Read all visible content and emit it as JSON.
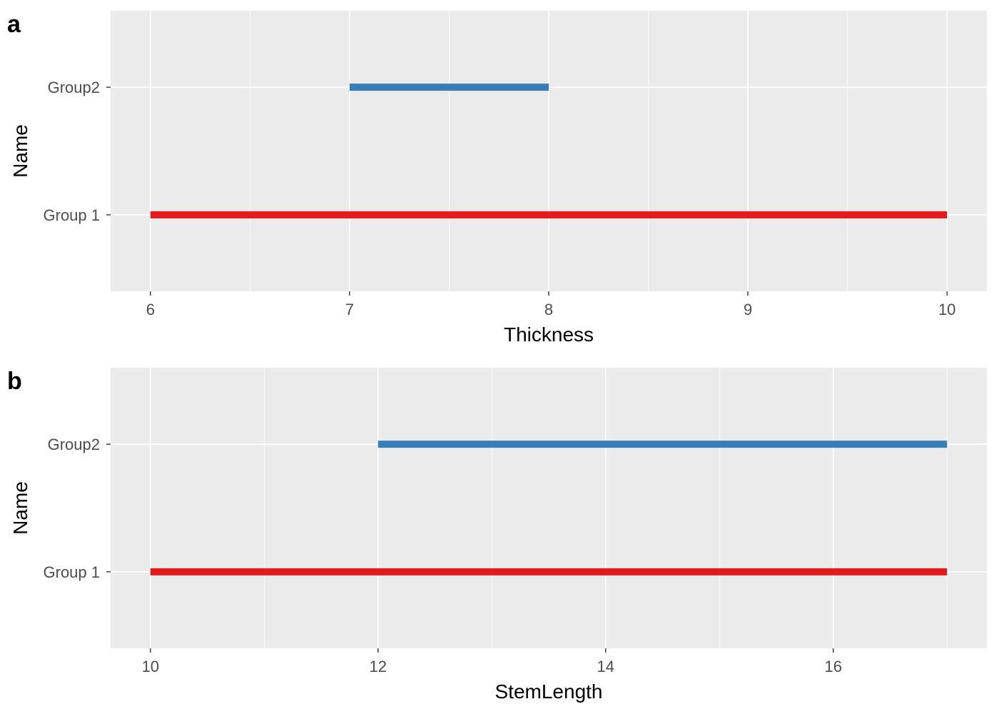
{
  "chart_data": [
    {
      "tag": "a",
      "type": "range_segment",
      "xlabel": "Thickness",
      "ylabel": "Name",
      "xlim": [
        5.8,
        10.2
      ],
      "xticks": [
        "6",
        "7",
        "8",
        "9",
        "10"
      ],
      "xtick_values": [
        6,
        7,
        8,
        9,
        10
      ],
      "xminor_values": [
        6.5,
        7.5,
        8.5,
        9.5
      ],
      "categories": [
        "Group 1",
        "Group2"
      ],
      "series": [
        {
          "category": "Group2",
          "x_start": 7,
          "x_end": 8,
          "color": "#377EB8"
        },
        {
          "category": "Group 1",
          "x_start": 6,
          "x_end": 10,
          "color": "#E41A1C"
        }
      ],
      "grid": true
    },
    {
      "tag": "b",
      "type": "range_segment",
      "xlabel": "StemLength",
      "ylabel": "Name",
      "xlim": [
        9.65,
        17.35
      ],
      "xticks": [
        "10",
        "12",
        "14",
        "16"
      ],
      "xtick_values": [
        10,
        12,
        14,
        16
      ],
      "xminor_values": [
        11,
        13,
        15,
        17
      ],
      "categories": [
        "Group 1",
        "Group2"
      ],
      "series": [
        {
          "category": "Group2",
          "x_start": 12,
          "x_end": 17,
          "color": "#377EB8"
        },
        {
          "category": "Group 1",
          "x_start": 10,
          "x_end": 17,
          "color": "#E41A1C"
        }
      ],
      "grid": true
    }
  ]
}
